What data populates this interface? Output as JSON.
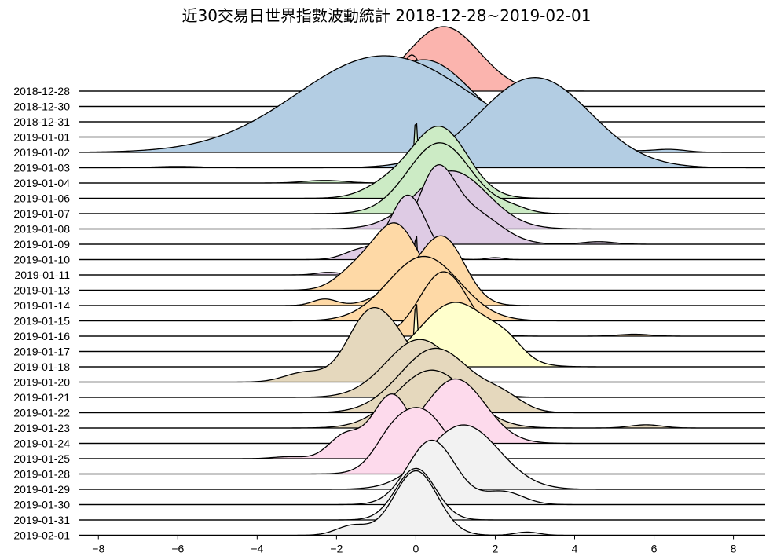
{
  "chart_data": {
    "type": "area",
    "subtype": "ridgeline",
    "title": "近30交易日世界指數波動統計 2018-12-28~2019-02-01",
    "xlabel": "",
    "ylabel": "",
    "xlim": [
      -8.5,
      8.8
    ],
    "xticks": [
      -8,
      -6,
      -4,
      -2,
      0,
      2,
      4,
      6,
      8
    ],
    "xtick_labels": [
      "−8",
      "−6",
      "−4",
      "−2",
      "0",
      "2",
      "4",
      "6",
      "8"
    ],
    "grid": false,
    "legend": "none",
    "series": [
      {
        "label": "2018-12-28",
        "color": "#fbb4ae",
        "baseline_color": "#fbb4ae",
        "peaks": [
          [
            0.7,
            0.9,
            1.0
          ]
        ]
      },
      {
        "label": "2018-12-30",
        "color": "#fbb4ae",
        "baseline_color": "#fbb4ae",
        "peaks": [
          [
            -0.1,
            0.3,
            0.8
          ]
        ]
      },
      {
        "label": "2018-12-31",
        "color": "#fbb4ae",
        "baseline_color": "#fbb4ae",
        "peaks": [
          [
            0.0,
            0.08,
            0.7
          ]
        ]
      },
      {
        "label": "2019-01-01",
        "color": "#b3cde3",
        "baseline_color": "#b3cde3",
        "peaks": [
          [
            0.2,
            1.2,
            1.2
          ]
        ]
      },
      {
        "label": "2019-01-02",
        "color": "#b3cde3",
        "baseline_color": "#b3cde3",
        "peaks": [
          [
            -0.8,
            2.2,
            1.5
          ],
          [
            6.4,
            0.4,
            0.04
          ]
        ]
      },
      {
        "label": "2019-01-03",
        "color": "#b3cde3",
        "baseline_color": "#b3cde3",
        "peaks": [
          [
            -6.0,
            0.6,
            0.02
          ],
          [
            3.0,
            1.4,
            1.4
          ]
        ]
      },
      {
        "label": "2019-01-04",
        "color": "#ccebc5",
        "baseline_color": "#ccebc5",
        "peaks": [
          [
            0.0,
            0.05,
            1.0
          ],
          [
            -2.3,
            0.5,
            0.04
          ]
        ]
      },
      {
        "label": "2019-01-06",
        "color": "#ccebc5",
        "baseline_color": "#ccebc5",
        "peaks": [
          [
            0.6,
            0.7,
            1.1
          ],
          [
            -0.7,
            0.6,
            0.2
          ]
        ]
      },
      {
        "label": "2019-01-07",
        "color": "#ccebc5",
        "baseline_color": "#ccebc5",
        "peaks": [
          [
            0.6,
            0.8,
            1.1
          ],
          [
            2.4,
            0.4,
            0.08
          ]
        ]
      },
      {
        "label": "2019-01-08",
        "color": "#decbe4",
        "baseline_color": "#decbe4",
        "peaks": [
          [
            0.9,
            0.9,
            0.9
          ]
        ]
      },
      {
        "label": "2019-01-09",
        "color": "#decbe4",
        "baseline_color": "#decbe4",
        "peaks": [
          [
            0.5,
            0.45,
            1.0
          ],
          [
            1.4,
            0.7,
            0.5
          ],
          [
            4.6,
            0.4,
            0.04
          ]
        ]
      },
      {
        "label": "2019-01-10",
        "color": "#decbe4",
        "baseline_color": "#decbe4",
        "peaks": [
          [
            -0.2,
            0.45,
            1.0
          ],
          [
            -1.4,
            0.4,
            0.15
          ],
          [
            2.0,
            0.2,
            0.03
          ]
        ]
      },
      {
        "label": "2019-01-11",
        "color": "#decbe4",
        "baseline_color": "#decbe4",
        "peaks": [
          [
            0.0,
            0.02,
            1.0
          ],
          [
            -2.2,
            0.3,
            0.04
          ]
        ]
      },
      {
        "label": "2019-01-13",
        "color": "#fed9a6",
        "baseline_color": "#fed9a6",
        "peaks": [
          [
            -0.5,
            0.55,
            1.0
          ],
          [
            -1.5,
            0.5,
            0.3
          ]
        ]
      },
      {
        "label": "2019-01-14",
        "color": "#fed9a6",
        "baseline_color": "#fed9a6",
        "peaks": [
          [
            0.7,
            0.55,
            1.0
          ],
          [
            -0.3,
            0.6,
            0.3
          ],
          [
            -2.3,
            0.3,
            0.1
          ]
        ]
      },
      {
        "label": "2019-01-15",
        "color": "#fed9a6",
        "baseline_color": "#fed9a6",
        "peaks": [
          [
            0.2,
            0.9,
            1.0
          ]
        ]
      },
      {
        "label": "2019-01-16",
        "color": "#fed9a6",
        "baseline_color": "#fed9a6",
        "peaks": [
          [
            0.7,
            0.6,
            1.0
          ],
          [
            5.5,
            0.4,
            0.03
          ]
        ]
      },
      {
        "label": "2019-01-17",
        "color": "#ffffcc",
        "baseline_color": "#ffffcc",
        "peaks": [
          [
            0.0,
            0.02,
            0.9
          ],
          [
            0.1,
            0.3,
            0.2
          ]
        ]
      },
      {
        "label": "2019-01-18",
        "color": "#ffffcc",
        "baseline_color": "#ffffcc",
        "peaks": [
          [
            1.0,
            0.9,
            1.0
          ],
          [
            2.3,
            0.4,
            0.2
          ]
        ]
      },
      {
        "label": "2019-01-20",
        "color": "#e5d8bd",
        "baseline_color": "#e5d8bd",
        "peaks": [
          [
            -1.2,
            0.55,
            1.0
          ],
          [
            -0.4,
            0.5,
            0.45
          ],
          [
            -2.8,
            0.5,
            0.15
          ]
        ]
      },
      {
        "label": "2019-01-21",
        "color": "#e5d8bd",
        "baseline_color": "#e5d8bd",
        "peaks": [
          [
            0.1,
            0.85,
            0.9
          ]
        ]
      },
      {
        "label": "2019-01-22",
        "color": "#e5d8bd",
        "baseline_color": "#e5d8bd",
        "peaks": [
          [
            0.5,
            0.9,
            1.0
          ],
          [
            2.2,
            0.5,
            0.2
          ]
        ]
      },
      {
        "label": "2019-01-23",
        "color": "#e5d8bd",
        "baseline_color": "#e5d8bd",
        "peaks": [
          [
            0.4,
            0.9,
            0.9
          ],
          [
            5.8,
            0.4,
            0.05
          ]
        ]
      },
      {
        "label": "2019-01-24",
        "color": "#fddaec",
        "baseline_color": "#fddaec",
        "peaks": [
          [
            1.0,
            0.75,
            1.0
          ]
        ]
      },
      {
        "label": "2019-01-25",
        "color": "#fddaec",
        "baseline_color": "#fddaec",
        "peaks": [
          [
            -0.6,
            0.5,
            1.0
          ],
          [
            -1.8,
            0.4,
            0.35
          ],
          [
            -3.2,
            0.4,
            0.03
          ]
        ]
      },
      {
        "label": "2019-01-28",
        "color": "#fddaec",
        "baseline_color": "#fddaec",
        "peaks": [
          [
            0.1,
            0.7,
            1.0
          ],
          [
            -0.7,
            0.4,
            0.2
          ]
        ]
      },
      {
        "label": "2019-01-29",
        "color": "#f2f2f2",
        "baseline_color": "#f2f2f2",
        "peaks": [
          [
            1.2,
            0.9,
            1.0
          ]
        ]
      },
      {
        "label": "2019-01-30",
        "color": "#f2f2f2",
        "baseline_color": "#f2f2f2",
        "peaks": [
          [
            0.4,
            0.6,
            1.0
          ],
          [
            2.2,
            0.5,
            0.2
          ]
        ]
      },
      {
        "label": "2019-01-31",
        "color": "#f2f2f2",
        "baseline_color": "#f2f2f2",
        "peaks": [
          [
            0.0,
            0.5,
            0.8
          ]
        ]
      },
      {
        "label": "2019-02-01",
        "color": "#f2f2f2",
        "baseline_color": "#f2f2f2",
        "peaks": [
          [
            0.0,
            0.55,
            1.0
          ],
          [
            -1.6,
            0.4,
            0.15
          ],
          [
            2.8,
            0.3,
            0.05
          ]
        ]
      }
    ]
  }
}
